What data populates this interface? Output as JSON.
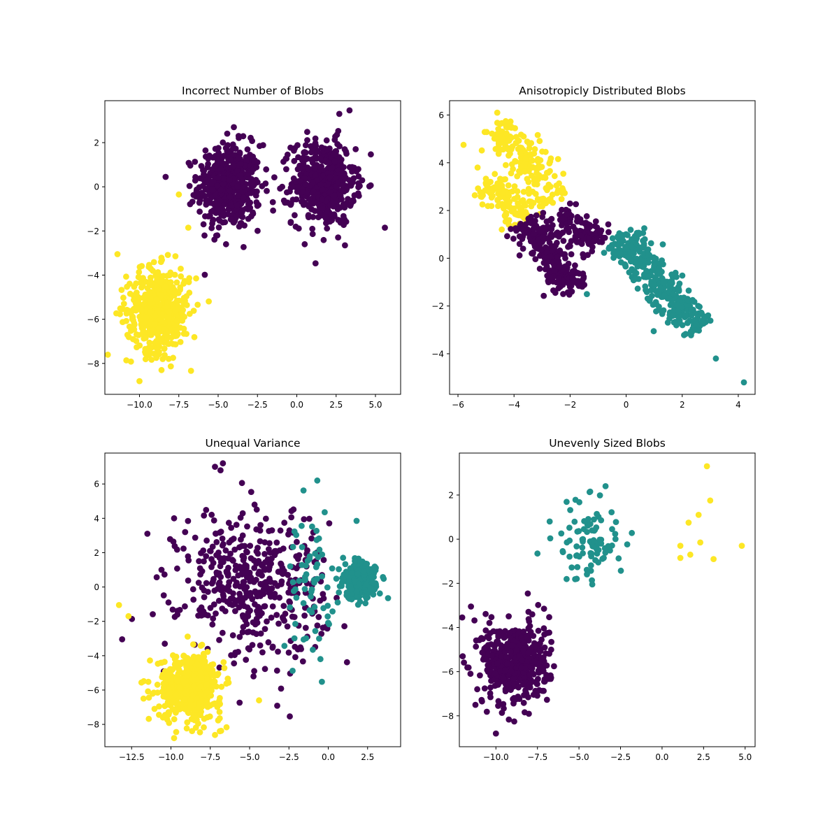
{
  "chart_data": [
    {
      "type": "scatter",
      "title": "Incorrect Number of Blobs",
      "xlim": [
        -12.2,
        6.6
      ],
      "ylim": [
        -9.4,
        3.9
      ],
      "xticks": [
        -10,
        -7.5,
        -5,
        -2.5,
        0,
        2.5,
        5
      ],
      "xtick_labels": [
        "−10.0",
        "−7.5",
        "−5.0",
        "−2.5",
        "0.0",
        "2.5",
        "5.0"
      ],
      "yticks": [
        -8,
        -6,
        -4,
        -2,
        0,
        2
      ],
      "ytick_labels": [
        "−8",
        "−6",
        "−4",
        "−2",
        "0",
        "2"
      ],
      "clusters": [
        {
          "label": "0",
          "color": "#440154",
          "center": [
            -4.3,
            0.0
          ],
          "spread": [
            1.0,
            0.95
          ],
          "count": 500
        },
        {
          "label": "0",
          "color": "#440154",
          "center": [
            1.7,
            0.2
          ],
          "spread": [
            1.0,
            0.95
          ],
          "count": 500
        },
        {
          "label": "1",
          "color": "#fde725",
          "center": [
            -8.8,
            -5.6
          ],
          "spread": [
            1.0,
            0.95
          ],
          "count": 500
        }
      ],
      "points": [
        {
          "x": -4.0,
          "y": 2.7,
          "cluster": 0
        },
        {
          "x": -3.7,
          "y": 2.3,
          "cluster": 0
        },
        {
          "x": 5.6,
          "y": -1.85,
          "cluster": 0
        },
        {
          "x": 2.7,
          "y": 3.3,
          "cluster": 0
        },
        {
          "x": -4.5,
          "y": -2.6,
          "cluster": 0
        },
        {
          "x": 0.5,
          "y": -2.6,
          "cluster": 0
        },
        {
          "x": -11.4,
          "y": -3.05,
          "cluster": 2
        },
        {
          "x": -10.0,
          "y": -8.8,
          "cluster": 2
        },
        {
          "x": -6.4,
          "y": -4.15,
          "cluster": 2
        },
        {
          "x": -8.6,
          "y": -8.3,
          "cluster": 2
        },
        {
          "x": -7.5,
          "y": -0.35,
          "cluster": 2
        },
        {
          "x": -6.9,
          "y": -1.85,
          "cluster": 2
        }
      ]
    },
    {
      "type": "scatter",
      "title": "Anisotropicly Distributed Blobs",
      "xlim": [
        -6.3,
        4.6
      ],
      "ylim": [
        -5.7,
        6.6
      ],
      "xticks": [
        -6,
        -4,
        -2,
        0,
        2,
        4
      ],
      "xtick_labels": [
        "−6",
        "−4",
        "−2",
        "0",
        "2",
        "4"
      ],
      "yticks": [
        -4,
        -2,
        0,
        2,
        4,
        6
      ],
      "ytick_labels": [
        "−4",
        "−2",
        "0",
        "2",
        "4",
        "6"
      ],
      "clusters": [
        {
          "label": "0",
          "color": "#fde725",
          "line": [
            [
              -4.6,
              5.6
            ],
            [
              -2.5,
              2.4
            ]
          ],
          "width": 0.35,
          "count": 180
        },
        {
          "label": "0",
          "color": "#fde725",
          "line": [
            [
              -5.0,
              3.3
            ],
            [
              -3.6,
              1.6
            ]
          ],
          "width": 0.3,
          "count": 120
        },
        {
          "label": "1",
          "color": "#440154",
          "line": [
            [
              -3.6,
              1.6
            ],
            [
              -1.8,
              -1.3
            ]
          ],
          "width": 0.35,
          "count": 250
        },
        {
          "label": "1",
          "color": "#440154",
          "line": [
            [
              -2.3,
              2.0
            ],
            [
              -1.0,
              0.6
            ]
          ],
          "width": 0.3,
          "count": 100
        },
        {
          "label": "2",
          "color": "#21918c",
          "line": [
            [
              -0.3,
              0.9
            ],
            [
              2.6,
              -3.0
            ]
          ],
          "width": 0.35,
          "count": 330
        }
      ],
      "points": [
        {
          "x": -5.8,
          "y": 4.75,
          "cluster": 0
        },
        {
          "x": -4.6,
          "y": 6.1,
          "cluster": 0
        },
        {
          "x": -5.3,
          "y": 3.8,
          "cluster": 0
        },
        {
          "x": 4.2,
          "y": -5.2,
          "cluster": 4
        },
        {
          "x": 3.2,
          "y": -4.2,
          "cluster": 4
        },
        {
          "x": -1.4,
          "y": -1.5,
          "cluster": 4
        },
        {
          "x": -0.5,
          "y": 0.5,
          "cluster": 4
        }
      ]
    },
    {
      "type": "scatter",
      "title": "Unequal Variance",
      "xlim": [
        -14.2,
        4.6
      ],
      "ylim": [
        -9.3,
        7.8
      ],
      "xticks": [
        -12.5,
        -10,
        -7.5,
        -5,
        -2.5,
        0,
        2.5
      ],
      "xtick_labels": [
        "−12.5",
        "−10.0",
        "−7.5",
        "−5.0",
        "−2.5",
        "0.0",
        "2.5"
      ],
      "yticks": [
        -8,
        -6,
        -4,
        -2,
        0,
        2,
        4,
        6
      ],
      "ytick_labels": [
        "−8",
        "−6",
        "−4",
        "−2",
        "0",
        "2",
        "4",
        "6"
      ],
      "clusters": [
        {
          "label": "0",
          "color": "#440154",
          "center": [
            -4.8,
            0.2
          ],
          "spread": [
            2.3,
            2.2
          ],
          "count": 450
        },
        {
          "label": "1",
          "color": "#21918c",
          "center": [
            2.0,
            0.3
          ],
          "spread": [
            0.5,
            0.5
          ],
          "count": 280
        },
        {
          "label": "1",
          "color": "#21918c",
          "center": [
            -1.0,
            0.2
          ],
          "spread": [
            1.0,
            2.0
          ],
          "count": 70
        },
        {
          "label": "2",
          "color": "#fde725",
          "center": [
            -8.8,
            -5.8
          ],
          "spread": [
            1.0,
            0.95
          ],
          "count": 500
        }
      ],
      "points": [
        {
          "x": -13.3,
          "y": -1.05,
          "cluster": 3
        },
        {
          "x": -9.8,
          "y": -8.8,
          "cluster": 3
        },
        {
          "x": -12.7,
          "y": -1.7,
          "cluster": 3
        },
        {
          "x": -4.4,
          "y": -6.6,
          "cluster": 3
        },
        {
          "x": -6.7,
          "y": 7.2,
          "cluster": 0
        },
        {
          "x": -7.2,
          "y": 7.0,
          "cluster": 0
        },
        {
          "x": -11.5,
          "y": 3.1,
          "cluster": 0
        },
        {
          "x": -9.8,
          "y": 4.0,
          "cluster": 0
        },
        {
          "x": -0.7,
          "y": 6.2,
          "cluster": 2
        },
        {
          "x": 3.8,
          "y": -0.65,
          "cluster": 1
        },
        {
          "x": 1.8,
          "y": 3.85,
          "cluster": 2
        },
        {
          "x": -0.5,
          "y": -4.2,
          "cluster": 2
        }
      ]
    },
    {
      "type": "scatter",
      "title": "Unevenly Sized Blobs",
      "xlim": [
        -12.2,
        5.6
      ],
      "ylim": [
        -9.4,
        3.9
      ],
      "xticks": [
        -10,
        -7.5,
        -5,
        -2.5,
        0,
        2.5,
        5
      ],
      "xtick_labels": [
        "−10.0",
        "−7.5",
        "−5.0",
        "−2.5",
        "0.0",
        "2.5",
        "5.0"
      ],
      "yticks": [
        -8,
        -6,
        -4,
        -2,
        0,
        2
      ],
      "ytick_labels": [
        "−8",
        "−6",
        "−4",
        "−2",
        "0",
        "2"
      ],
      "clusters": [
        {
          "label": "0",
          "color": "#440154",
          "center": [
            -8.8,
            -5.6
          ],
          "spread": [
            1.0,
            0.95
          ],
          "count": 500
        },
        {
          "label": "1",
          "color": "#21918c",
          "center": [
            -4.3,
            0.0
          ],
          "spread": [
            1.0,
            0.95
          ],
          "count": 90
        }
      ],
      "points": [
        {
          "x": -11.5,
          "y": -3.05,
          "cluster": 0
        },
        {
          "x": -10.0,
          "y": -8.8,
          "cluster": 0
        },
        {
          "x": -7.5,
          "y": -0.65,
          "cluster": 1
        },
        {
          "x": -3.4,
          "y": 2.4,
          "cluster": 1
        },
        {
          "x": -4.2,
          "y": -2.05,
          "cluster": 1
        },
        {
          "x": 2.7,
          "y": 3.3,
          "cluster": 2
        },
        {
          "x": 2.9,
          "y": 1.75,
          "cluster": 2
        },
        {
          "x": 2.2,
          "y": 1.1,
          "cluster": 2
        },
        {
          "x": 1.6,
          "y": 0.75,
          "cluster": 2
        },
        {
          "x": 1.1,
          "y": -0.3,
          "cluster": 2
        },
        {
          "x": 2.3,
          "y": -0.15,
          "cluster": 2
        },
        {
          "x": 1.7,
          "y": -0.7,
          "cluster": 2
        },
        {
          "x": 1.1,
          "y": -0.85,
          "cluster": 2
        },
        {
          "x": 3.1,
          "y": -0.9,
          "cluster": 2
        },
        {
          "x": 4.8,
          "y": -0.3,
          "cluster": 2
        }
      ],
      "extra_colors": {
        "2": "#fde725"
      }
    }
  ]
}
